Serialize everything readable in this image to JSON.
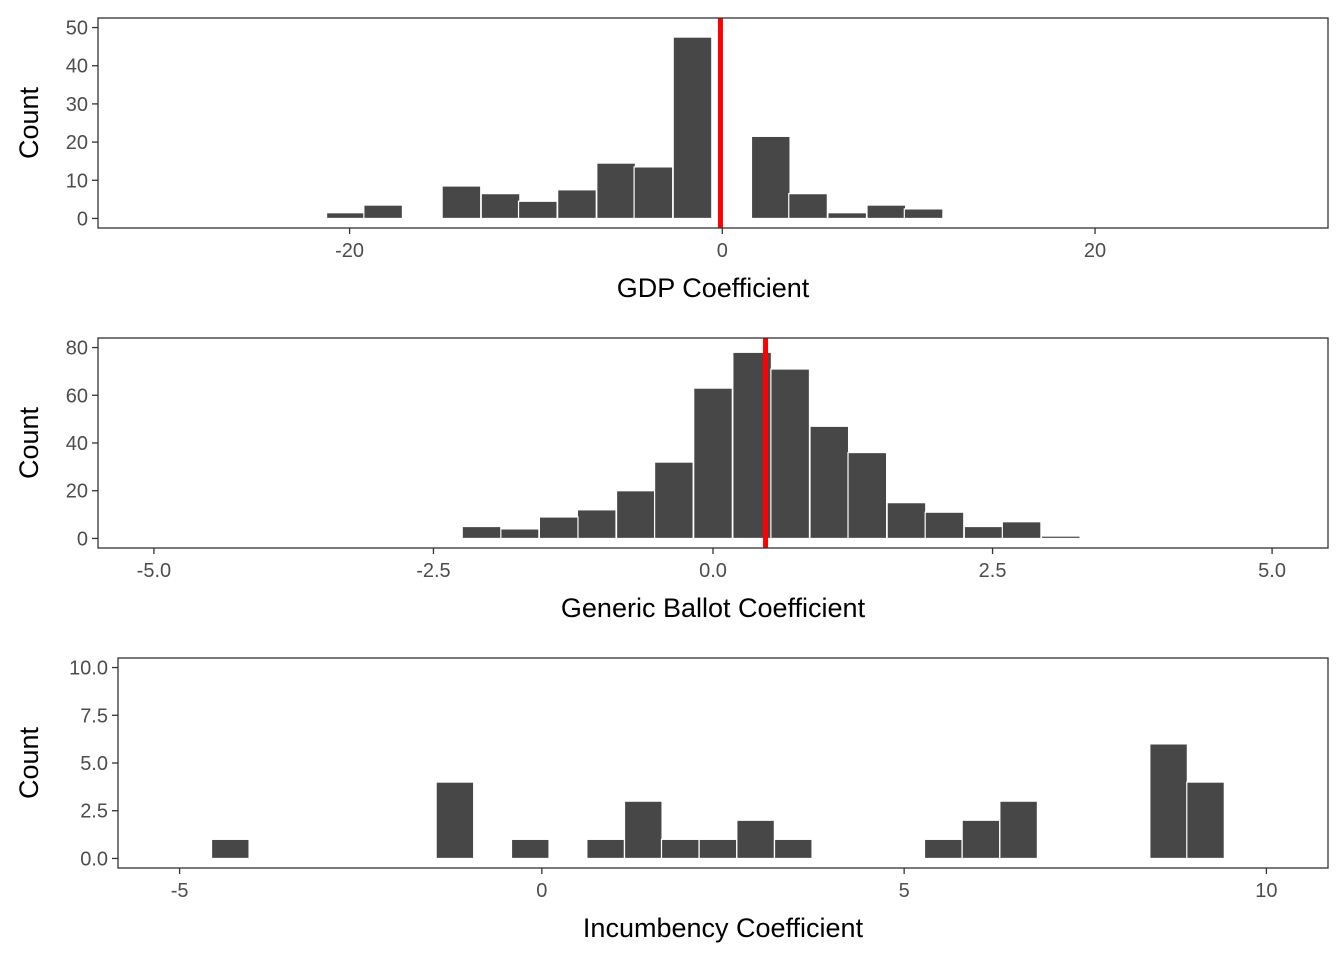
{
  "chart_data": [
    {
      "type": "bar",
      "xlabel": "GDP Coefficient",
      "ylabel": "Count",
      "xlim": [
        -33.5,
        32.5
      ],
      "ylim": [
        -2.5,
        52.5
      ],
      "xticks": [
        -20,
        0,
        20
      ],
      "xtick_labels": [
        "-20",
        "0",
        "20"
      ],
      "yticks": [
        0,
        10,
        20,
        30,
        40,
        50
      ],
      "ytick_labels": [
        "0",
        "10",
        "20",
        "30",
        "40",
        "50"
      ],
      "bin_width": 2.07,
      "bins": [
        {
          "center": -28.5,
          "count": 0.2
        },
        {
          "center": -26.4,
          "count": 0.2
        },
        {
          "center": -20.2,
          "count": 1.5
        },
        {
          "center": -18.2,
          "count": 3.5
        },
        {
          "center": -16.1,
          "count": 0.2
        },
        {
          "center": -14.0,
          "count": 8.5
        },
        {
          "center": -11.9,
          "count": 6.5
        },
        {
          "center": -9.9,
          "count": 4.5
        },
        {
          "center": -7.8,
          "count": 7.5
        },
        {
          "center": -5.7,
          "count": 14.5
        },
        {
          "center": -3.7,
          "count": 13.5
        },
        {
          "center": -1.6,
          "count": 47.5
        },
        {
          "center": 2.6,
          "count": 21.5
        },
        {
          "center": 4.6,
          "count": 6.5
        },
        {
          "center": 6.7,
          "count": 1.5
        },
        {
          "center": 8.8,
          "count": 3.5
        },
        {
          "center": 10.8,
          "count": 2.5
        },
        {
          "center": 16.6,
          "count": 0.2
        },
        {
          "center": 22.5,
          "count": 0.2
        },
        {
          "center": 24.6,
          "count": 0.2
        }
      ],
      "vline": {
        "x": -0.1,
        "color": "#ff0000"
      },
      "bar_color": "#474747"
    },
    {
      "type": "bar",
      "xlabel": "Generic Ballot Coefficient",
      "ylabel": "Count",
      "xlim": [
        -5.5,
        5.5
      ],
      "ylim": [
        -4,
        84
      ],
      "xticks": [
        -5,
        -2.5,
        0,
        2.5,
        5
      ],
      "xtick_labels": [
        "-5.0",
        "-2.5",
        "0.0",
        "2.5",
        "5.0"
      ],
      "yticks": [
        0,
        20,
        40,
        60,
        80
      ],
      "ytick_labels": [
        "0",
        "20",
        "40",
        "60",
        "80"
      ],
      "bin_width": 0.345,
      "bins": [
        {
          "center": -1.04,
          "count": 12
        },
        {
          "center": -1.38,
          "count": 9
        },
        {
          "center": -1.73,
          "count": 4
        },
        {
          "center": -2.07,
          "count": 5
        },
        {
          "center": -0.69,
          "count": 20
        },
        {
          "center": -0.35,
          "count": 32
        },
        {
          "center": 0.0,
          "count": 63
        },
        {
          "center": 0.35,
          "count": 78
        },
        {
          "center": 0.69,
          "count": 71
        },
        {
          "center": 1.04,
          "count": 47
        },
        {
          "center": 1.38,
          "count": 36
        },
        {
          "center": 1.73,
          "count": 15
        },
        {
          "center": 2.07,
          "count": 11
        },
        {
          "center": 2.42,
          "count": 5
        },
        {
          "center": 2.76,
          "count": 7
        },
        {
          "center": 3.11,
          "count": 1
        }
      ],
      "vline": {
        "x": 0.47,
        "color": "#ff0000"
      },
      "bar_color": "#474747"
    },
    {
      "type": "bar",
      "xlabel": "Incumbency Coefficient",
      "ylabel": "Count",
      "xlim": [
        -5.85,
        10.85
      ],
      "ylim": [
        -0.5,
        10.5
      ],
      "xticks": [
        -5,
        0,
        5,
        10
      ],
      "xtick_labels": [
        "-5",
        "0",
        "5",
        "10"
      ],
      "yticks": [
        0,
        2.5,
        5,
        7.5,
        10
      ],
      "ytick_labels": [
        "0.0",
        "2.5",
        "5.0",
        "7.5",
        "10.0"
      ],
      "bin_width": 0.518,
      "bins": [
        {
          "center": -4.3,
          "count": 1
        },
        {
          "center": -1.2,
          "count": 4
        },
        {
          "center": -0.16,
          "count": 1
        },
        {
          "center": 0.88,
          "count": 1
        },
        {
          "center": 1.4,
          "count": 3
        },
        {
          "center": 1.91,
          "count": 1
        },
        {
          "center": 2.43,
          "count": 1
        },
        {
          "center": 2.95,
          "count": 2
        },
        {
          "center": 3.47,
          "count": 1
        },
        {
          "center": 5.54,
          "count": 1
        },
        {
          "center": 6.06,
          "count": 2
        },
        {
          "center": 6.58,
          "count": 3
        },
        {
          "center": 8.65,
          "count": 6
        },
        {
          "center": 9.16,
          "count": 4
        }
      ],
      "bar_color": "#474747"
    }
  ]
}
